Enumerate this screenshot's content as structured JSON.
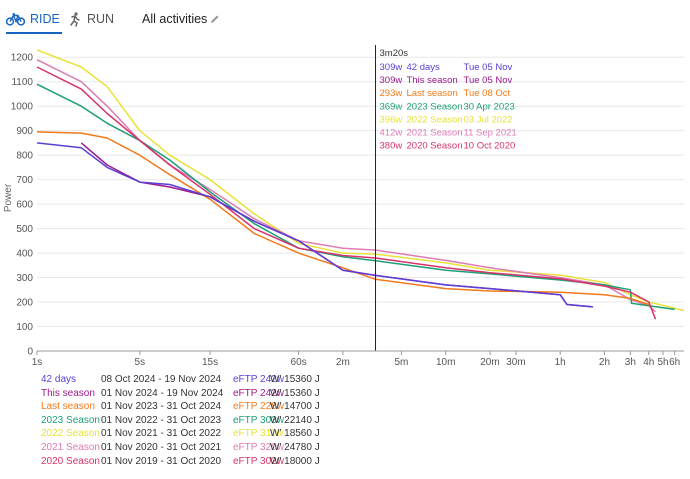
{
  "header": {
    "tabs": [
      {
        "label": "RIDE",
        "icon": "bicycle-icon",
        "active": true
      },
      {
        "label": "RUN",
        "icon": "runner-icon",
        "active": false
      }
    ],
    "filter_label": "All activities",
    "filter_icon": "pencil-icon"
  },
  "colors": {
    "accent": "#1565c0",
    "s42days": "#5b3fd6",
    "this_season": "#9c1a8e",
    "last_season": "#f07a1c",
    "s2023": "#1e9e77",
    "s2022": "#e8e23a",
    "s2021": "#de7cb4",
    "s2020": "#d6336c"
  },
  "tooltip": {
    "duration": "3m20s",
    "rows": [
      {
        "value": "309w",
        "name": "42 days",
        "date": "Tue 05 Nov",
        "color": "#5b3fd6"
      },
      {
        "value": "309w",
        "name": "This season",
        "date": "Tue 05 Nov",
        "color": "#9c1a8e"
      },
      {
        "value": "293w",
        "name": "Last season",
        "date": "Tue 08 Oct",
        "color": "#f07a1c"
      },
      {
        "value": "369w",
        "name": "2023 Season",
        "date": "30 Apr 2023",
        "color": "#1e9e77"
      },
      {
        "value": "396w",
        "name": "2022 Season",
        "date": "03 Jul 2022",
        "color": "#e8e23a"
      },
      {
        "value": "412w",
        "name": "2021 Season",
        "date": "11 Sep 2021",
        "color": "#de7cb4"
      },
      {
        "value": "380w",
        "name": "2020 Season",
        "date": "10 Oct 2020",
        "color": "#d6336c"
      }
    ]
  },
  "legend": [
    {
      "name": "42 days",
      "dates": "08 Oct 2024 - 19 Nov 2024",
      "eftp": "eFTP 242w",
      "w": "W' 15360 J",
      "color": "#5b3fd6"
    },
    {
      "name": "This season",
      "dates": "01 Nov 2024 - 19 Nov 2024",
      "eftp": "eFTP 242w",
      "w": "W' 15360 J",
      "color": "#9c1a8e"
    },
    {
      "name": "Last season",
      "dates": "01 Nov 2023 - 31 Oct 2024",
      "eftp": "eFTP 228w",
      "w": "W' 14700 J",
      "color": "#f07a1c"
    },
    {
      "name": "2023 Season",
      "dates": "01 Nov 2022 - 31 Oct 2023",
      "eftp": "eFTP 303w",
      "w": "W' 22140 J",
      "color": "#1e9e77"
    },
    {
      "name": "2022 Season",
      "dates": "01 Nov 2021 - 31 Oct 2022",
      "eftp": "eFTP 311w",
      "w": "W' 18560 J",
      "color": "#e8e23a"
    },
    {
      "name": "2021 Season",
      "dates": "01 Nov 2020 - 31 Oct 2021",
      "eftp": "eFTP 320w",
      "w": "W' 24780 J",
      "color": "#de7cb4"
    },
    {
      "name": "2020 Season",
      "dates": "01 Nov 2019 - 31 Oct 2020",
      "eftp": "eFTP 302w",
      "w": "W' 18000 J",
      "color": "#d6336c"
    }
  ],
  "chart_data": {
    "type": "line",
    "x_scale": "log",
    "x_unit": "seconds",
    "ylabel": "Power",
    "ylim": [
      0,
      1250
    ],
    "yticks": [
      0,
      100,
      200,
      300,
      400,
      500,
      600,
      700,
      800,
      900,
      1000,
      1100,
      1200
    ],
    "xlim": [
      1,
      25000
    ],
    "xticks": [
      {
        "label": "1s",
        "value": 1
      },
      {
        "label": "5s",
        "value": 5
      },
      {
        "label": "15s",
        "value": 15
      },
      {
        "label": "60s",
        "value": 60
      },
      {
        "label": "2m",
        "value": 120
      },
      {
        "label": "5m",
        "value": 300
      },
      {
        "label": "10m",
        "value": 600
      },
      {
        "label": "20m",
        "value": 1200
      },
      {
        "label": "30m",
        "value": 1800
      },
      {
        "label": "1h",
        "value": 3600
      },
      {
        "label": "2h",
        "value": 7200
      },
      {
        "label": "3h",
        "value": 10800
      },
      {
        "label": "4h",
        "value": 14400
      },
      {
        "label": "5h",
        "value": 18000
      },
      {
        "label": "6h",
        "value": 21600
      }
    ],
    "cursor_x": 200,
    "grid": true,
    "series": [
      {
        "name": "2022 Season",
        "color": "#e8e23a",
        "points": [
          [
            1,
            1230
          ],
          [
            2,
            1160
          ],
          [
            3,
            1080
          ],
          [
            5,
            900
          ],
          [
            8,
            800
          ],
          [
            15,
            700
          ],
          [
            30,
            560
          ],
          [
            60,
            440
          ],
          [
            120,
            400
          ],
          [
            200,
            396
          ],
          [
            600,
            360
          ],
          [
            1200,
            330
          ],
          [
            3600,
            310
          ],
          [
            7200,
            280
          ],
          [
            10800,
            230
          ],
          [
            14400,
            200
          ],
          [
            21600,
            175
          ],
          [
            25000,
            165
          ]
        ]
      },
      {
        "name": "2021 Season",
        "color": "#de7cb4",
        "points": [
          [
            1,
            1190
          ],
          [
            2,
            1100
          ],
          [
            3,
            1000
          ],
          [
            5,
            860
          ],
          [
            8,
            760
          ],
          [
            15,
            660
          ],
          [
            30,
            540
          ],
          [
            60,
            450
          ],
          [
            120,
            420
          ],
          [
            200,
            412
          ],
          [
            600,
            370
          ],
          [
            1200,
            340
          ],
          [
            3600,
            300
          ],
          [
            7200,
            270
          ],
          [
            10800,
            210
          ],
          [
            14400,
            185
          ],
          [
            16000,
            160
          ]
        ]
      },
      {
        "name": "2023 Season",
        "color": "#1e9e77",
        "points": [
          [
            1,
            1090
          ],
          [
            2,
            1000
          ],
          [
            3,
            930
          ],
          [
            5,
            860
          ],
          [
            8,
            780
          ],
          [
            15,
            650
          ],
          [
            30,
            520
          ],
          [
            60,
            420
          ],
          [
            120,
            385
          ],
          [
            200,
            369
          ],
          [
            600,
            330
          ],
          [
            1200,
            315
          ],
          [
            3600,
            290
          ],
          [
            7200,
            270
          ],
          [
            10800,
            250
          ],
          [
            11000,
            195
          ],
          [
            14400,
            185
          ],
          [
            21600,
            170
          ]
        ]
      },
      {
        "name": "Last season",
        "color": "#f07a1c",
        "points": [
          [
            1,
            895
          ],
          [
            2,
            890
          ],
          [
            3,
            870
          ],
          [
            5,
            800
          ],
          [
            8,
            720
          ],
          [
            15,
            620
          ],
          [
            30,
            480
          ],
          [
            60,
            400
          ],
          [
            120,
            340
          ],
          [
            200,
            293
          ],
          [
            600,
            255
          ],
          [
            1200,
            245
          ],
          [
            3600,
            240
          ],
          [
            7200,
            230
          ],
          [
            10800,
            215
          ],
          [
            14400,
            190
          ],
          [
            15000,
            175
          ]
        ]
      },
      {
        "name": "2020 Season",
        "color": "#d6336c",
        "points": [
          [
            1,
            1160
          ],
          [
            2,
            1070
          ],
          [
            3,
            970
          ],
          [
            5,
            860
          ],
          [
            8,
            760
          ],
          [
            15,
            640
          ],
          [
            30,
            500
          ],
          [
            60,
            420
          ],
          [
            120,
            390
          ],
          [
            200,
            380
          ],
          [
            600,
            340
          ],
          [
            1200,
            320
          ],
          [
            3600,
            295
          ],
          [
            7200,
            265
          ],
          [
            10800,
            240
          ],
          [
            14400,
            200
          ],
          [
            16000,
            130
          ]
        ]
      },
      {
        "name": "This season",
        "color": "#9c1a8e",
        "points": [
          [
            2,
            850
          ],
          [
            3,
            760
          ],
          [
            5,
            690
          ],
          [
            8,
            670
          ],
          [
            15,
            630
          ],
          [
            30,
            530
          ],
          [
            60,
            450
          ],
          [
            120,
            330
          ],
          [
            200,
            309
          ],
          [
            600,
            270
          ],
          [
            1200,
            255
          ],
          [
            3600,
            230
          ],
          [
            4000,
            190
          ],
          [
            6000,
            180
          ]
        ]
      },
      {
        "name": "42 days",
        "color": "#5b3fd6",
        "points": [
          [
            1,
            850
          ],
          [
            2,
            830
          ],
          [
            3,
            750
          ],
          [
            5,
            690
          ],
          [
            8,
            680
          ],
          [
            15,
            630
          ],
          [
            30,
            530
          ],
          [
            60,
            450
          ],
          [
            120,
            330
          ],
          [
            200,
            309
          ],
          [
            600,
            270
          ],
          [
            1200,
            255
          ],
          [
            3600,
            230
          ],
          [
            4000,
            190
          ],
          [
            6000,
            180
          ]
        ]
      }
    ]
  }
}
